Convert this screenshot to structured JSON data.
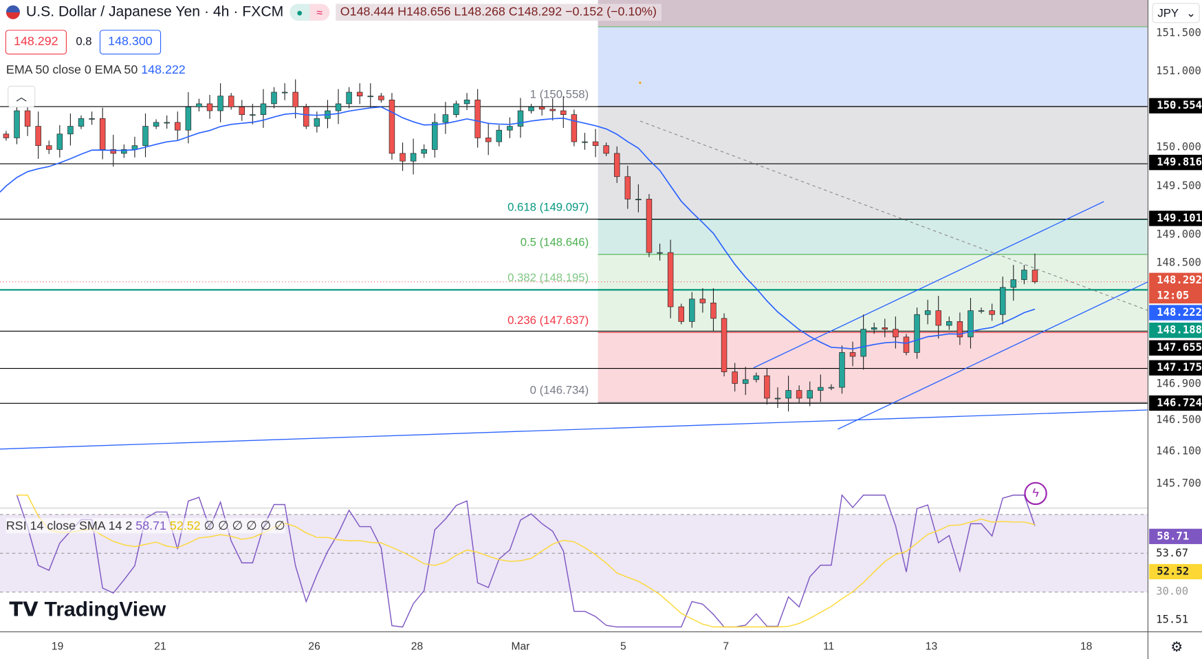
{
  "header": {
    "symbol_title": "U.S. Dollar / Japanese Yen · 4h · FXCM",
    "ohlc": {
      "open": "O148.444",
      "high": "H148.656",
      "low": "L148.268",
      "close": "C148.292",
      "change": "−0.152 (−0.10%)"
    },
    "bid": "148.292",
    "spread": "0.8",
    "ask": "148.300",
    "status_icon": "market-open-dot",
    "wave_icon": "approx-icon",
    "collapse_icon": "chevron-up-icon"
  },
  "indicator": {
    "ema_label": "EMA 50 close 0 EMA 50",
    "ema_value": "148.222"
  },
  "rsi": {
    "label": "RSI 14 close SMA 14 2",
    "rsi_value": "58.71",
    "sma_value": "52.52",
    "extra": "∅ ∅ ∅ ∅ ∅ ∅"
  },
  "currency_select": "JPY",
  "colors": {
    "up": "#26a69a",
    "down": "#ef5350",
    "ema": "#2962ff",
    "rsi": "#7e57c2",
    "rsi_sma": "#fdd835",
    "trend": "#2962ff"
  },
  "chart_data": {
    "type": "candlestick",
    "timeframe": "4h",
    "x_tick_labels": [
      "19",
      "21",
      "26",
      "28",
      "Mar",
      "5",
      "7",
      "11",
      "13",
      "18"
    ],
    "y_tick_labels": [
      "151.500",
      "151.000",
      "150.000",
      "149.500",
      "149.000",
      "148.500",
      "146.900",
      "146.500",
      "146.100",
      "145.700"
    ],
    "ylim": [
      145.55,
      151.55
    ],
    "closes": [
      150.15,
      150.5,
      150.3,
      150.05,
      150.0,
      150.2,
      150.3,
      150.4,
      150.4,
      150.0,
      149.95,
      150.0,
      150.05,
      150.3,
      150.35,
      150.35,
      150.25,
      150.55,
      150.59,
      150.5,
      150.69,
      150.55,
      150.45,
      150.45,
      150.59,
      150.74,
      150.74,
      150.55,
      150.3,
      150.4,
      150.5,
      150.59,
      150.74,
      150.69,
      150.69,
      150.64,
      149.95,
      149.85,
      149.95,
      150.0,
      150.35,
      150.45,
      150.59,
      150.64,
      150.15,
      150.1,
      150.25,
      150.3,
      150.5,
      150.55,
      150.52,
      150.5,
      150.45,
      150.1,
      150.1,
      150.05,
      149.95,
      149.65,
      149.36,
      149.36,
      148.67,
      148.67,
      147.97,
      147.78,
      148.07,
      148.02,
      147.82,
      147.13,
      146.98,
      147.03,
      147.08,
      146.79,
      146.79,
      146.89,
      146.79,
      146.89,
      146.93,
      146.93,
      147.38,
      147.33,
      147.68,
      147.7,
      147.68,
      147.58,
      147.38,
      147.87,
      147.92,
      147.73,
      147.78,
      147.58,
      147.92,
      147.92,
      147.87,
      148.22,
      148.32,
      148.444
    ],
    "last_candle": {
      "open": 148.444,
      "high": 148.656,
      "low": 148.268,
      "close": 148.292
    },
    "ema_period": 50,
    "price_levels": [
      {
        "value": "150.554",
        "color": "#000000"
      },
      {
        "value": "149.816",
        "color": "#000000"
      },
      {
        "value": "149.101",
        "color": "#000000"
      },
      {
        "value": "148.188",
        "color": "#089981"
      },
      {
        "value": "147.655",
        "color": "#000000"
      },
      {
        "value": "147.175",
        "color": "#000000"
      },
      {
        "value": "146.724",
        "color": "#000000"
      }
    ],
    "axis_tags": [
      {
        "value": "148.292",
        "sub": "12:05",
        "color": "#e0533f"
      },
      {
        "value": "148.222",
        "color": "#2962ff"
      }
    ],
    "fib_levels": [
      {
        "label": "1 (150.558)",
        "price": 150.558,
        "color": "#787b86"
      },
      {
        "label": "0.618 (149.097)",
        "price": 149.097,
        "color": "#089981"
      },
      {
        "label": "0.5 (148.646)",
        "price": 148.646,
        "color": "#4caf50"
      },
      {
        "label": "0.382 (148.195)",
        "price": 148.195,
        "color": "#81c784"
      },
      {
        "label": "0.236 (147.637)",
        "price": 147.637,
        "color": "#f23645"
      },
      {
        "label": "0 (146.734)",
        "price": 146.734,
        "color": "#787b86"
      }
    ],
    "rsi_axis": {
      "rsi": "58.71",
      "mid": "53.67",
      "sma": "52.52",
      "bottom": "15.51",
      "lower_band": "30.00"
    }
  },
  "branding": {
    "logo_text": "TradingView"
  }
}
